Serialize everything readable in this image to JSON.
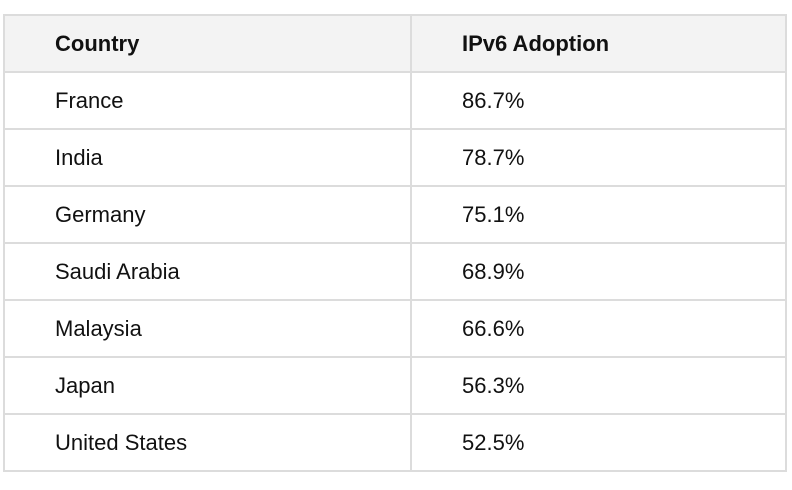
{
  "table": {
    "header": [
      "Country",
      "IPv6 Adoption"
    ],
    "rows": [
      [
        "France",
        "86.7%"
      ],
      [
        "India",
        "78.7%"
      ],
      [
        "Germany",
        "75.1%"
      ],
      [
        "Saudi Arabia",
        "68.9%"
      ],
      [
        "Malaysia",
        "66.6%"
      ],
      [
        "Japan",
        "56.3%"
      ],
      [
        "United States",
        "52.5%"
      ]
    ]
  }
}
